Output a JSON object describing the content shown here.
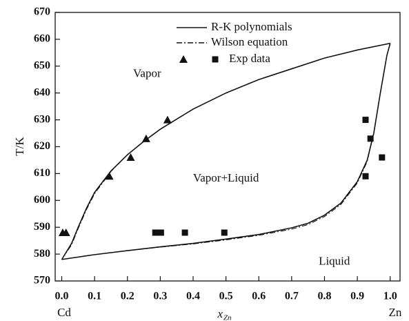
{
  "chart_data": {
    "type": "line",
    "ylabel": "T/K",
    "xlabel": "x",
    "xlabel_sub": "Zn",
    "xlim": [
      -0.02,
      1.03
    ],
    "ylim": [
      570,
      670
    ],
    "xticks": [
      {
        "value": 0,
        "label": "0.0"
      },
      0.1,
      0.2,
      0.3,
      0.4,
      0.5,
      0.6,
      0.7,
      0.8,
      0.9,
      {
        "value": 1,
        "label": "1.0"
      }
    ],
    "yticks": [
      570,
      580,
      590,
      600,
      610,
      620,
      630,
      640,
      650,
      660,
      670
    ],
    "x_end_labels": [
      "Cd",
      "Zn"
    ],
    "annotations": [
      {
        "text": "Vapor",
        "x": 0.26,
        "y": 647
      },
      {
        "text": "Vapor+Liquid",
        "x": 0.5,
        "y": 608
      },
      {
        "text": "Liquid",
        "x": 0.83,
        "y": 577
      }
    ],
    "series": [
      {
        "name": "R-K polynomials",
        "style": "solid",
        "color": "#111111",
        "curves": [
          {
            "x": [
              0,
              0.03,
              0.05,
              0.075,
              0.1,
              0.15,
              0.2,
              0.25,
              0.3,
              0.4,
              0.5,
              0.6,
              0.7,
              0.8,
              0.9,
              1.0
            ],
            "values": [
              578,
              584,
              590,
              597,
              603,
              611,
              617,
              622,
              626.5,
              634,
              640,
              645,
              649,
              653,
              656,
              658.5
            ]
          },
          {
            "x": [
              0,
              0.1,
              0.2,
              0.3,
              0.4,
              0.5,
              0.6,
              0.7,
              0.75,
              0.8,
              0.85,
              0.9,
              0.93,
              0.95,
              0.97,
              0.99,
              1.0
            ],
            "values": [
              578,
              579.8,
              581.3,
              582.7,
              584,
              585.6,
              587.3,
              589.8,
              591.5,
              594.5,
              599,
              607,
              615,
              625,
              640,
              654,
              658.5
            ]
          }
        ]
      },
      {
        "name": "Wilson equation",
        "style": "dashdot",
        "color": "#111111",
        "curves": [
          {
            "x": [
              0,
              0.03,
              0.05,
              0.075,
              0.1,
              0.15,
              0.2,
              0.25,
              0.3,
              0.4,
              0.5,
              0.6,
              0.7,
              0.8,
              0.9,
              1.0
            ],
            "values": [
              578,
              583.5,
              589.5,
              596.5,
              602.5,
              610.8,
              617,
              622,
              626.5,
              634,
              640,
              645,
              649,
              653,
              656,
              658.5
            ]
          },
          {
            "x": [
              0,
              0.1,
              0.2,
              0.3,
              0.4,
              0.5,
              0.6,
              0.7,
              0.75,
              0.8,
              0.85,
              0.9,
              0.93,
              0.95,
              0.97,
              0.99,
              1.0
            ],
            "values": [
              578,
              579.8,
              581.3,
              582.6,
              583.8,
              585.3,
              587,
              589.3,
              591,
              594,
              598.5,
              606.5,
              614.5,
              625,
              640,
              654,
              658.5
            ]
          }
        ]
      }
    ],
    "exp_data": {
      "name": "Exp data",
      "color": "#111111",
      "sets": [
        {
          "marker": "triangle",
          "x": [
            0.003,
            0.013,
            0.145,
            0.21,
            0.257,
            0.322
          ],
          "values": [
            588,
            588,
            609,
            616,
            623,
            630
          ]
        },
        {
          "marker": "square",
          "x": [
            0.285,
            0.302,
            0.375,
            0.495,
            0.925,
            0.94,
            0.975,
            0.925
          ],
          "values": [
            588,
            588,
            588,
            588,
            630,
            623,
            616,
            609
          ]
        }
      ]
    }
  }
}
